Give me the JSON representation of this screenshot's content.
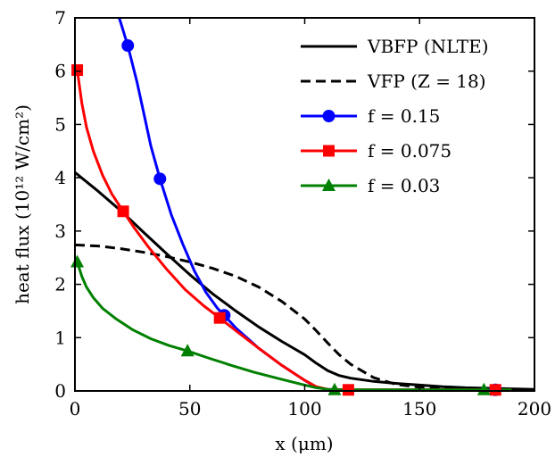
{
  "chart_data": {
    "type": "line",
    "xlabel": "x (μm)",
    "ylabel": "heat flux (10¹² W/cm²)",
    "xlim": [
      0,
      200
    ],
    "ylim": [
      0,
      7
    ],
    "xticks": [
      0,
      50,
      100,
      150,
      200
    ],
    "yticks": [
      0,
      1,
      2,
      3,
      4,
      5,
      6,
      7
    ],
    "xtick_labels": [
      "0",
      "50",
      "100",
      "150",
      "200"
    ],
    "ytick_labels": [
      "0",
      "1",
      "2",
      "3",
      "4",
      "5",
      "6",
      "7"
    ],
    "grid": false,
    "legend": "top-right",
    "series": [
      {
        "name": "VBFP (NLTE)",
        "color": "#000000",
        "dash": "solid",
        "marker": "none",
        "x": [
          0,
          10,
          20,
          30,
          40,
          50,
          60,
          70,
          80,
          90,
          100,
          105,
          110,
          115,
          120,
          130,
          140,
          150,
          160,
          170,
          180,
          190,
          200
        ],
        "y": [
          4.1,
          3.75,
          3.38,
          2.97,
          2.57,
          2.18,
          1.82,
          1.5,
          1.2,
          0.93,
          0.68,
          0.52,
          0.38,
          0.29,
          0.24,
          0.18,
          0.14,
          0.11,
          0.08,
          0.06,
          0.05,
          0.04,
          0.03
        ]
      },
      {
        "name": "VFP (Z = 18)",
        "color": "#000000",
        "dash": "dashed",
        "marker": "none",
        "x": [
          0,
          10,
          20,
          30,
          40,
          50,
          60,
          70,
          80,
          90,
          100,
          105,
          110,
          115,
          120,
          130,
          140,
          150,
          160,
          170,
          180,
          190,
          200
        ],
        "y": [
          2.74,
          2.72,
          2.67,
          2.6,
          2.52,
          2.42,
          2.3,
          2.15,
          1.95,
          1.68,
          1.35,
          1.13,
          0.9,
          0.68,
          0.5,
          0.25,
          0.12,
          0.07,
          0.05,
          0.04,
          0.03,
          0.02,
          0.02
        ]
      },
      {
        "name": "f = 0.15",
        "color": "#0000ff",
        "dash": "solid",
        "marker": "circle",
        "x": [
          17,
          20,
          23,
          27,
          30,
          33,
          37,
          42,
          47,
          52,
          57,
          62,
          65,
          70,
          80,
          90,
          100,
          105,
          110,
          120,
          140,
          160,
          180,
          190
        ],
        "y": [
          7.3,
          6.9,
          6.48,
          5.8,
          5.2,
          4.6,
          3.98,
          3.3,
          2.75,
          2.25,
          1.85,
          1.55,
          1.42,
          1.18,
          0.8,
          0.48,
          0.2,
          0.07,
          0.03,
          0.02,
          0.02,
          0.02,
          0.02,
          0.02
        ],
        "marker_x": [
          23,
          37,
          65,
          183
        ],
        "marker_y": [
          6.48,
          3.98,
          1.42,
          0.02
        ]
      },
      {
        "name": "f = 0.075",
        "color": "#ff0000",
        "dash": "solid",
        "marker": "square",
        "x": [
          1,
          3,
          5,
          8,
          12,
          16,
          21,
          26,
          32,
          40,
          48,
          56,
          63,
          70,
          80,
          90,
          100,
          105,
          110,
          120,
          140,
          160,
          183,
          190
        ],
        "y": [
          6.02,
          5.4,
          4.95,
          4.5,
          4.05,
          3.7,
          3.37,
          3.05,
          2.7,
          2.28,
          1.9,
          1.6,
          1.37,
          1.13,
          0.8,
          0.48,
          0.2,
          0.08,
          0.03,
          0.02,
          0.02,
          0.02,
          0.02,
          0.02
        ],
        "marker_x": [
          1,
          21,
          63,
          119,
          183
        ],
        "marker_y": [
          6.02,
          3.37,
          1.37,
          0.02,
          0.02
        ]
      },
      {
        "name": "f = 0.03",
        "color": "#008000",
        "dash": "solid",
        "marker": "triangle",
        "x": [
          1,
          3,
          5,
          8,
          12,
          18,
          25,
          33,
          41,
          49,
          58,
          68,
          78,
          88,
          98,
          105,
          110,
          113,
          120,
          140,
          160,
          178,
          190
        ],
        "y": [
          2.42,
          2.15,
          1.95,
          1.75,
          1.55,
          1.35,
          1.15,
          0.98,
          0.85,
          0.75,
          0.62,
          0.48,
          0.35,
          0.24,
          0.13,
          0.06,
          0.03,
          0.02,
          0.02,
          0.02,
          0.02,
          0.02,
          0.02
        ],
        "marker_x": [
          1,
          49,
          113,
          178
        ],
        "marker_y": [
          2.42,
          0.75,
          0.02,
          0.02
        ]
      }
    ]
  }
}
